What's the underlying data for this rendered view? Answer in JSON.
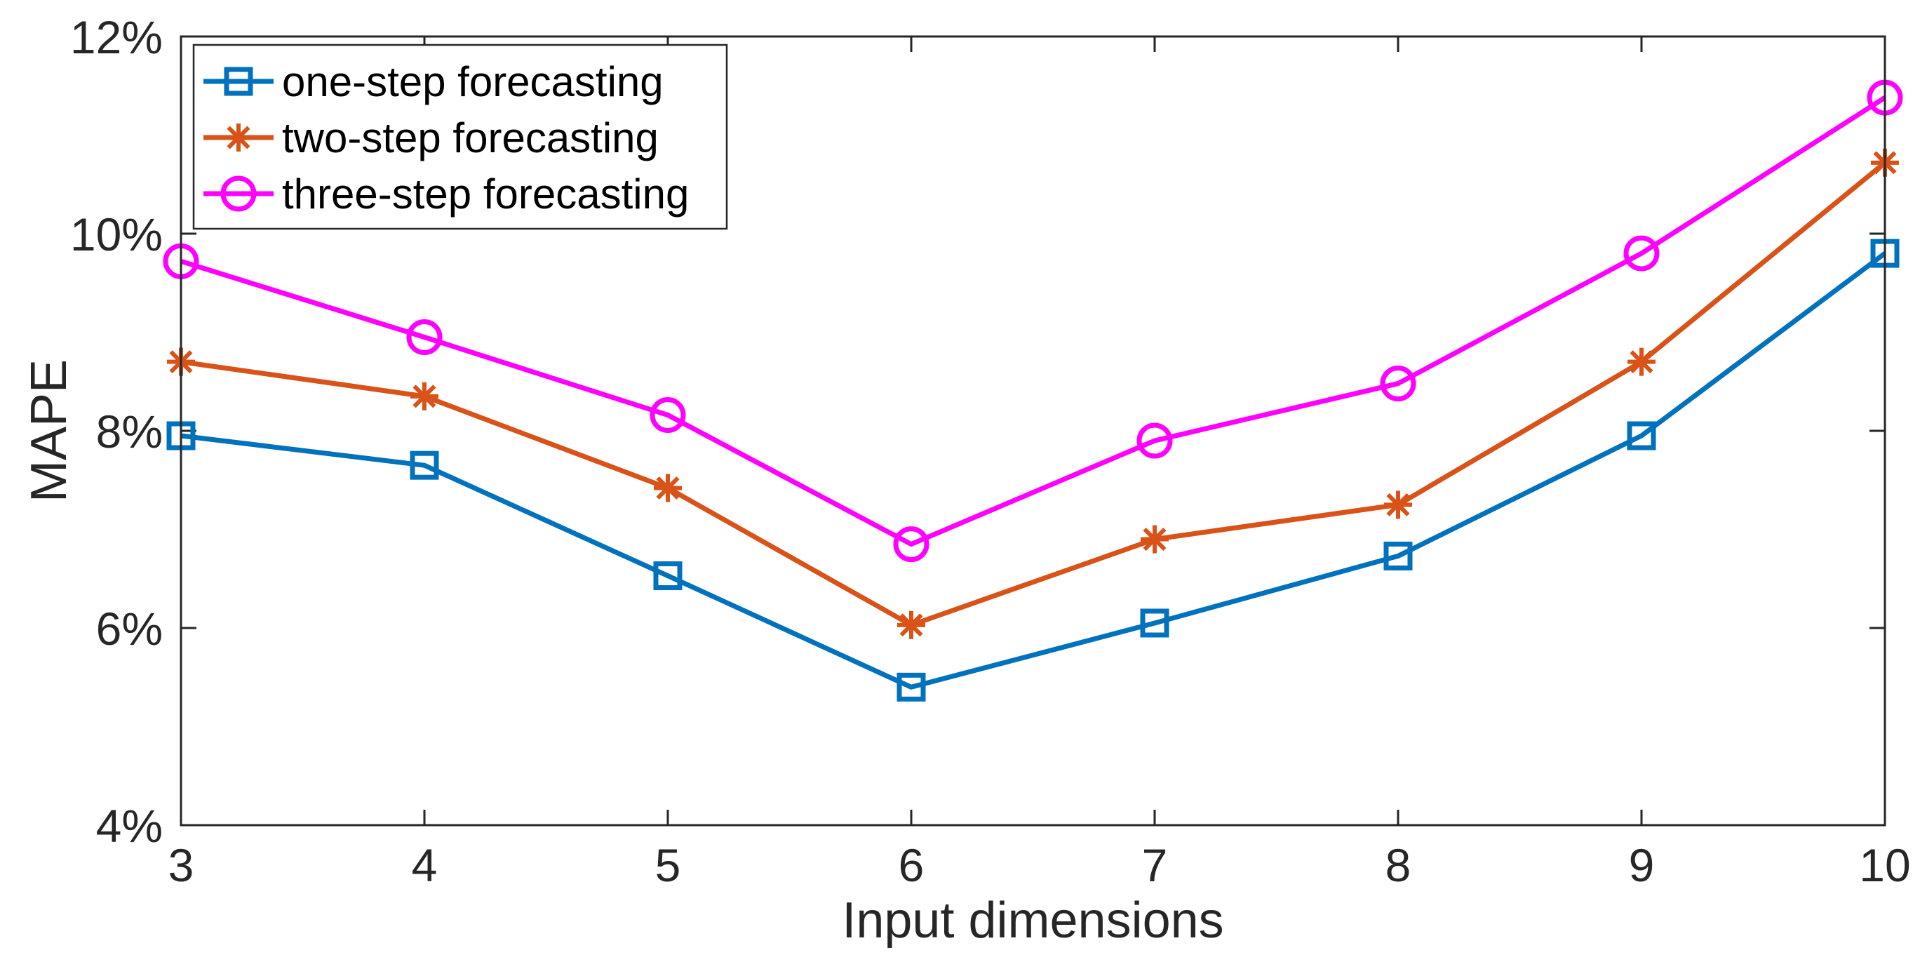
{
  "chart_data": {
    "type": "line",
    "title": "",
    "xlabel": "Input dimensions",
    "ylabel": "MAPE",
    "x": [
      3,
      4,
      5,
      6,
      7,
      8,
      9,
      10
    ],
    "xlim": [
      3,
      10
    ],
    "ylim": [
      4,
      12
    ],
    "x_tick_labels": [
      "3",
      "4",
      "5",
      "6",
      "7",
      "8",
      "9",
      "10"
    ],
    "y_ticks": [
      4,
      6,
      8,
      10,
      12
    ],
    "y_tick_labels": [
      "4%",
      "6%",
      "8%",
      "10%",
      "12%"
    ],
    "grid": false,
    "legend_position": "top-left",
    "series": [
      {
        "name": "one-step forecasting",
        "color": "#0072BD",
        "marker": "square",
        "values": [
          7.95,
          7.65,
          6.53,
          5.4,
          6.05,
          6.73,
          7.95,
          9.8
        ]
      },
      {
        "name": "two-step forecasting",
        "color": "#D95319",
        "marker": "asterisk",
        "values": [
          8.7,
          8.35,
          7.42,
          6.03,
          6.9,
          7.25,
          8.7,
          10.72
        ]
      },
      {
        "name": "three-step forecasting",
        "color": "#FF00FF",
        "marker": "circle",
        "values": [
          9.72,
          8.95,
          8.16,
          6.85,
          7.9,
          8.48,
          9.8,
          11.38
        ]
      }
    ]
  }
}
